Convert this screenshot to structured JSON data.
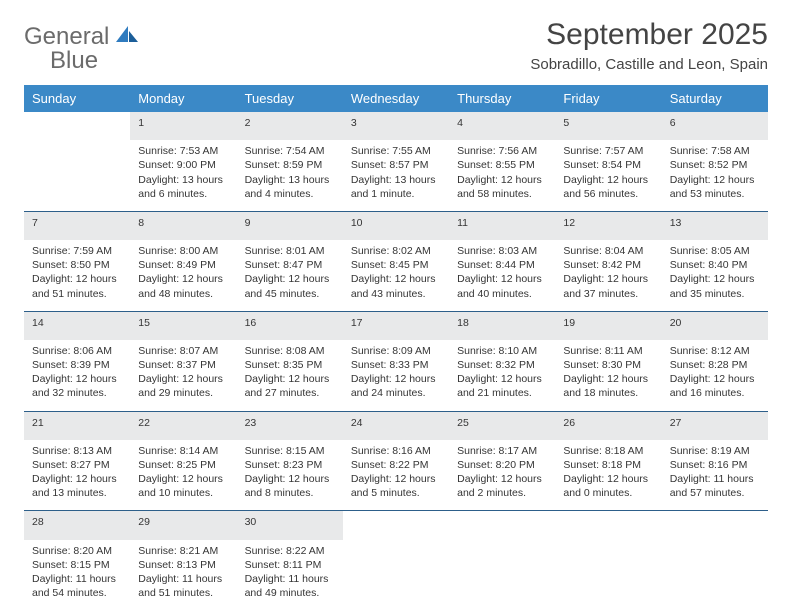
{
  "logo": {
    "word1": "General",
    "word2": "Blue"
  },
  "title": "September 2025",
  "subtitle": "Sobradillo, Castille and Leon, Spain",
  "colors": {
    "header_bg": "#3b89c7",
    "header_text": "#ffffff",
    "daynum_bg": "#e8e9ea",
    "row_border": "#2d5f8a",
    "body_text": "#353535",
    "title_text": "#444444",
    "logo_gray": "#6b6b6b",
    "logo_blue": "#2f7bbf",
    "page_bg": "#ffffff"
  },
  "typography": {
    "title_fontsize": 30,
    "subtitle_fontsize": 15,
    "header_fontsize": 13,
    "daynum_fontsize": 12,
    "cell_fontsize": 10.5
  },
  "weekdays": [
    "Sunday",
    "Monday",
    "Tuesday",
    "Wednesday",
    "Thursday",
    "Friday",
    "Saturday"
  ],
  "weeks": [
    [
      null,
      {
        "n": "1",
        "sr": "Sunrise: 7:53 AM",
        "ss": "Sunset: 9:00 PM",
        "dl": "Daylight: 13 hours and 6 minutes."
      },
      {
        "n": "2",
        "sr": "Sunrise: 7:54 AM",
        "ss": "Sunset: 8:59 PM",
        "dl": "Daylight: 13 hours and 4 minutes."
      },
      {
        "n": "3",
        "sr": "Sunrise: 7:55 AM",
        "ss": "Sunset: 8:57 PM",
        "dl": "Daylight: 13 hours and 1 minute."
      },
      {
        "n": "4",
        "sr": "Sunrise: 7:56 AM",
        "ss": "Sunset: 8:55 PM",
        "dl": "Daylight: 12 hours and 58 minutes."
      },
      {
        "n": "5",
        "sr": "Sunrise: 7:57 AM",
        "ss": "Sunset: 8:54 PM",
        "dl": "Daylight: 12 hours and 56 minutes."
      },
      {
        "n": "6",
        "sr": "Sunrise: 7:58 AM",
        "ss": "Sunset: 8:52 PM",
        "dl": "Daylight: 12 hours and 53 minutes."
      }
    ],
    [
      {
        "n": "7",
        "sr": "Sunrise: 7:59 AM",
        "ss": "Sunset: 8:50 PM",
        "dl": "Daylight: 12 hours and 51 minutes."
      },
      {
        "n": "8",
        "sr": "Sunrise: 8:00 AM",
        "ss": "Sunset: 8:49 PM",
        "dl": "Daylight: 12 hours and 48 minutes."
      },
      {
        "n": "9",
        "sr": "Sunrise: 8:01 AM",
        "ss": "Sunset: 8:47 PM",
        "dl": "Daylight: 12 hours and 45 minutes."
      },
      {
        "n": "10",
        "sr": "Sunrise: 8:02 AM",
        "ss": "Sunset: 8:45 PM",
        "dl": "Daylight: 12 hours and 43 minutes."
      },
      {
        "n": "11",
        "sr": "Sunrise: 8:03 AM",
        "ss": "Sunset: 8:44 PM",
        "dl": "Daylight: 12 hours and 40 minutes."
      },
      {
        "n": "12",
        "sr": "Sunrise: 8:04 AM",
        "ss": "Sunset: 8:42 PM",
        "dl": "Daylight: 12 hours and 37 minutes."
      },
      {
        "n": "13",
        "sr": "Sunrise: 8:05 AM",
        "ss": "Sunset: 8:40 PM",
        "dl": "Daylight: 12 hours and 35 minutes."
      }
    ],
    [
      {
        "n": "14",
        "sr": "Sunrise: 8:06 AM",
        "ss": "Sunset: 8:39 PM",
        "dl": "Daylight: 12 hours and 32 minutes."
      },
      {
        "n": "15",
        "sr": "Sunrise: 8:07 AM",
        "ss": "Sunset: 8:37 PM",
        "dl": "Daylight: 12 hours and 29 minutes."
      },
      {
        "n": "16",
        "sr": "Sunrise: 8:08 AM",
        "ss": "Sunset: 8:35 PM",
        "dl": "Daylight: 12 hours and 27 minutes."
      },
      {
        "n": "17",
        "sr": "Sunrise: 8:09 AM",
        "ss": "Sunset: 8:33 PM",
        "dl": "Daylight: 12 hours and 24 minutes."
      },
      {
        "n": "18",
        "sr": "Sunrise: 8:10 AM",
        "ss": "Sunset: 8:32 PM",
        "dl": "Daylight: 12 hours and 21 minutes."
      },
      {
        "n": "19",
        "sr": "Sunrise: 8:11 AM",
        "ss": "Sunset: 8:30 PM",
        "dl": "Daylight: 12 hours and 18 minutes."
      },
      {
        "n": "20",
        "sr": "Sunrise: 8:12 AM",
        "ss": "Sunset: 8:28 PM",
        "dl": "Daylight: 12 hours and 16 minutes."
      }
    ],
    [
      {
        "n": "21",
        "sr": "Sunrise: 8:13 AM",
        "ss": "Sunset: 8:27 PM",
        "dl": "Daylight: 12 hours and 13 minutes."
      },
      {
        "n": "22",
        "sr": "Sunrise: 8:14 AM",
        "ss": "Sunset: 8:25 PM",
        "dl": "Daylight: 12 hours and 10 minutes."
      },
      {
        "n": "23",
        "sr": "Sunrise: 8:15 AM",
        "ss": "Sunset: 8:23 PM",
        "dl": "Daylight: 12 hours and 8 minutes."
      },
      {
        "n": "24",
        "sr": "Sunrise: 8:16 AM",
        "ss": "Sunset: 8:22 PM",
        "dl": "Daylight: 12 hours and 5 minutes."
      },
      {
        "n": "25",
        "sr": "Sunrise: 8:17 AM",
        "ss": "Sunset: 8:20 PM",
        "dl": "Daylight: 12 hours and 2 minutes."
      },
      {
        "n": "26",
        "sr": "Sunrise: 8:18 AM",
        "ss": "Sunset: 8:18 PM",
        "dl": "Daylight: 12 hours and 0 minutes."
      },
      {
        "n": "27",
        "sr": "Sunrise: 8:19 AM",
        "ss": "Sunset: 8:16 PM",
        "dl": "Daylight: 11 hours and 57 minutes."
      }
    ],
    [
      {
        "n": "28",
        "sr": "Sunrise: 8:20 AM",
        "ss": "Sunset: 8:15 PM",
        "dl": "Daylight: 11 hours and 54 minutes."
      },
      {
        "n": "29",
        "sr": "Sunrise: 8:21 AM",
        "ss": "Sunset: 8:13 PM",
        "dl": "Daylight: 11 hours and 51 minutes."
      },
      {
        "n": "30",
        "sr": "Sunrise: 8:22 AM",
        "ss": "Sunset: 8:11 PM",
        "dl": "Daylight: 11 hours and 49 minutes."
      },
      null,
      null,
      null,
      null
    ]
  ]
}
